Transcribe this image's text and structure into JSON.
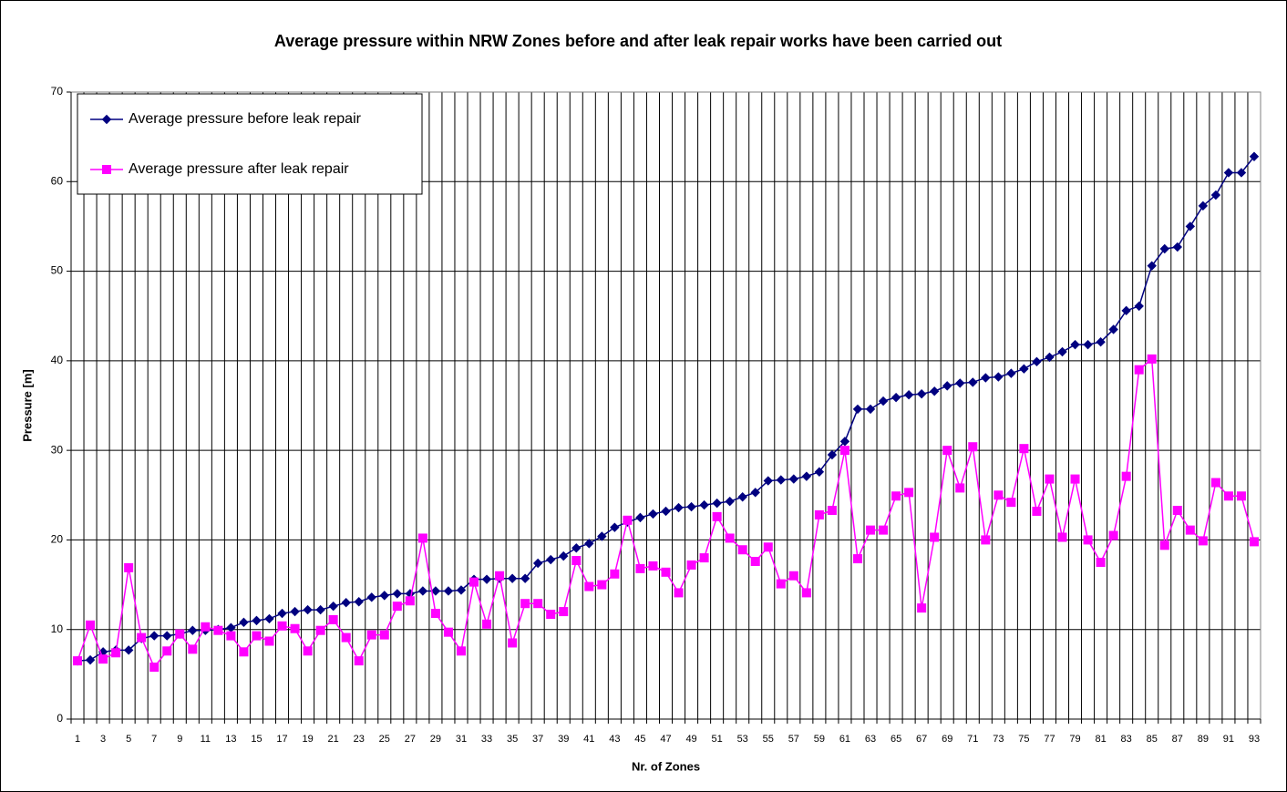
{
  "chart_data": {
    "type": "line",
    "title": "Average pressure within NRW Zones before and after leak repair works have been carried out",
    "x_label": "Nr. of Zones",
    "y_label": "Pressure [m]",
    "categories": [
      "1",
      null,
      "3",
      null,
      "5",
      null,
      "7",
      null,
      "9",
      null,
      "11",
      null,
      "13",
      null,
      "15",
      null,
      "17",
      null,
      "19",
      null,
      "21",
      null,
      "23",
      null,
      "25",
      null,
      "27",
      null,
      "29",
      null,
      "31",
      null,
      "33",
      null,
      "35",
      null,
      "37",
      null,
      "39",
      null,
      "41",
      null,
      "43",
      null,
      "45",
      null,
      "47",
      null,
      "49",
      null,
      "51",
      null,
      "53",
      null,
      "55",
      null,
      "57",
      null,
      "59",
      null,
      "61",
      null,
      "63",
      null,
      "65",
      null,
      "67",
      null,
      "69",
      null,
      "71",
      null,
      "73",
      null,
      "75",
      null,
      "77",
      null,
      "79",
      null,
      "81",
      null,
      "83",
      null,
      "85",
      null,
      "87",
      null,
      "89",
      null,
      "91",
      null,
      "93"
    ],
    "series": [
      {
        "name": "Average pressure before leak repair",
        "color": "#000080",
        "marker": "diamond",
        "values": [
          6.5,
          6.6,
          7.5,
          7.7,
          7.7,
          9.0,
          9.3,
          9.3,
          9.5,
          9.9,
          9.9,
          10.0,
          10.2,
          10.8,
          11.0,
          11.2,
          11.8,
          12.0,
          12.2,
          12.2,
          12.6,
          13.0,
          13.1,
          13.6,
          13.8,
          14.0,
          14.0,
          14.3,
          14.3,
          14.3,
          14.4,
          15.6,
          15.6,
          15.7,
          15.7,
          15.7,
          17.4,
          17.8,
          18.2,
          19.1,
          19.6,
          20.4,
          21.4,
          22.0,
          22.5,
          22.9,
          23.2,
          23.6,
          23.7,
          23.9,
          24.1,
          24.3,
          24.8,
          25.3,
          26.6,
          26.7,
          26.8,
          27.1,
          27.6,
          29.5,
          31.0,
          34.6,
          34.6,
          35.5,
          35.9,
          36.2,
          36.3,
          36.6,
          37.2,
          37.5,
          37.6,
          38.1,
          38.2,
          38.6,
          39.1,
          39.9,
          40.4,
          41.0,
          41.8,
          41.8,
          42.1,
          43.5,
          45.6,
          46.1,
          50.6,
          52.5,
          52.7,
          55.0,
          57.3,
          58.5,
          61.0,
          61.0,
          62.8
        ]
      },
      {
        "name": "Average pressure after leak repair",
        "color": "#ff00ff",
        "marker": "square",
        "values": [
          6.5,
          10.5,
          6.7,
          7.4,
          16.9,
          9.1,
          5.8,
          7.6,
          9.5,
          7.8,
          10.3,
          9.9,
          9.3,
          7.5,
          9.3,
          8.7,
          10.4,
          10.1,
          7.6,
          9.9,
          11.1,
          9.1,
          6.5,
          9.4,
          9.4,
          12.6,
          13.2,
          20.2,
          11.8,
          9.7,
          7.6,
          15.3,
          10.6,
          16.0,
          8.5,
          12.9,
          12.9,
          11.7,
          12.0,
          17.7,
          14.8,
          15.0,
          16.2,
          22.2,
          16.8,
          17.1,
          16.4,
          14.1,
          17.2,
          18.0,
          22.6,
          20.2,
          18.9,
          17.6,
          19.2,
          15.1,
          16.0,
          14.1,
          22.8,
          23.3,
          30.0,
          17.9,
          21.1,
          21.1,
          24.9,
          25.3,
          12.4,
          20.3,
          30.0,
          25.8,
          30.4,
          20.0,
          25.0,
          24.2,
          30.2,
          23.2,
          26.8,
          20.3,
          26.8,
          20.0,
          17.5,
          20.5,
          27.1,
          39.0,
          40.2,
          19.4,
          23.3,
          21.1,
          19.9,
          26.4,
          24.9,
          24.9,
          19.8
        ]
      }
    ],
    "ylim": [
      0,
      70
    ],
    "yticks": [
      0,
      10,
      20,
      30,
      40,
      50,
      60,
      70
    ],
    "grid": true,
    "legend": "upper left"
  }
}
